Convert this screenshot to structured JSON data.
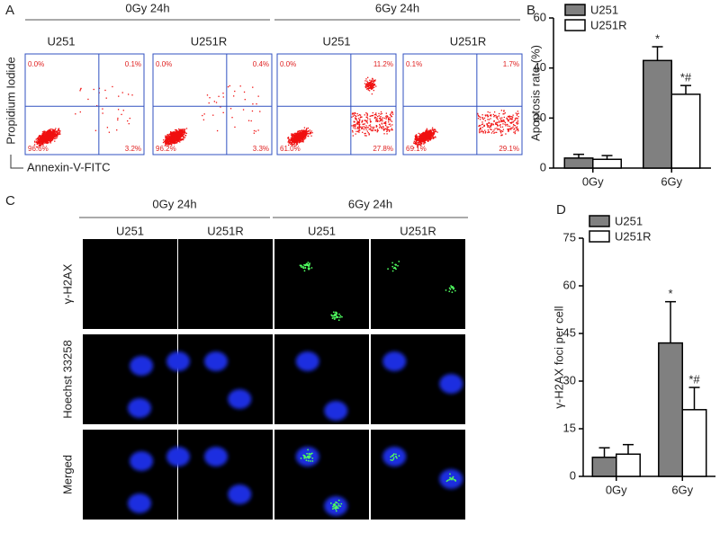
{
  "panel_a": {
    "label": "A",
    "ylabel": "Propidium Iodide",
    "xlabel": "Annexin-V-FITC",
    "groups": [
      {
        "title": "0Gy  24h",
        "plots": [
          {
            "name": "U251",
            "quadrants": [
              "0.0%",
              "0.1%",
              "96.6%",
              "3.2%"
            ]
          },
          {
            "name": "U251R",
            "quadrants": [
              "0.0%",
              "0.4%",
              "96.2%",
              "3.3%"
            ]
          }
        ]
      },
      {
        "title": "6Gy  24h",
        "plots": [
          {
            "name": "U251",
            "quadrants": [
              "0.0%",
              "11.2%",
              "61.0%",
              "27.8%"
            ]
          },
          {
            "name": "U251R",
            "quadrants": [
              "0.1%",
              "1.7%",
              "69.1%",
              "29.1%"
            ]
          }
        ]
      }
    ]
  },
  "panel_c": {
    "label": "C",
    "groups": [
      {
        "title": "0Gy  24h",
        "columns": [
          "U251",
          "U251R"
        ]
      },
      {
        "title": "6Gy  24h",
        "columns": [
          "U251",
          "U251R"
        ]
      }
    ],
    "rows": [
      "γ-H2AX",
      "Hoechst 33258",
      "Merged"
    ]
  },
  "chart_data": [
    {
      "type": "bar",
      "panel": "B",
      "ylabel": "Apoptosis rate (%)",
      "categories": [
        "0Gy",
        "6Gy"
      ],
      "ylim": [
        0,
        60
      ],
      "yticks": [
        0,
        20,
        40,
        60
      ],
      "series": [
        {
          "name": "U251",
          "color": "#808080",
          "values": [
            4,
            43
          ],
          "errors": [
            1.5,
            5.5
          ],
          "annotations": [
            null,
            "*"
          ]
        },
        {
          "name": "U251R",
          "color": "#ffffff",
          "values": [
            3.5,
            29.5
          ],
          "errors": [
            1.5,
            3.5
          ],
          "annotations": [
            null,
            "*#"
          ]
        }
      ]
    },
    {
      "type": "bar",
      "panel": "D",
      "ylabel": "γ-H2AX foci per cell",
      "categories": [
        "0Gy",
        "6Gy"
      ],
      "ylim": [
        0,
        75
      ],
      "yticks": [
        0,
        15,
        30,
        45,
        60,
        75
      ],
      "series": [
        {
          "name": "U251",
          "color": "#808080",
          "values": [
            6,
            42
          ],
          "errors": [
            3,
            13
          ],
          "annotations": [
            null,
            "*"
          ]
        },
        {
          "name": "U251R",
          "color": "#ffffff",
          "values": [
            7,
            21
          ],
          "errors": [
            3,
            7
          ],
          "annotations": [
            null,
            "*#"
          ]
        }
      ]
    }
  ]
}
